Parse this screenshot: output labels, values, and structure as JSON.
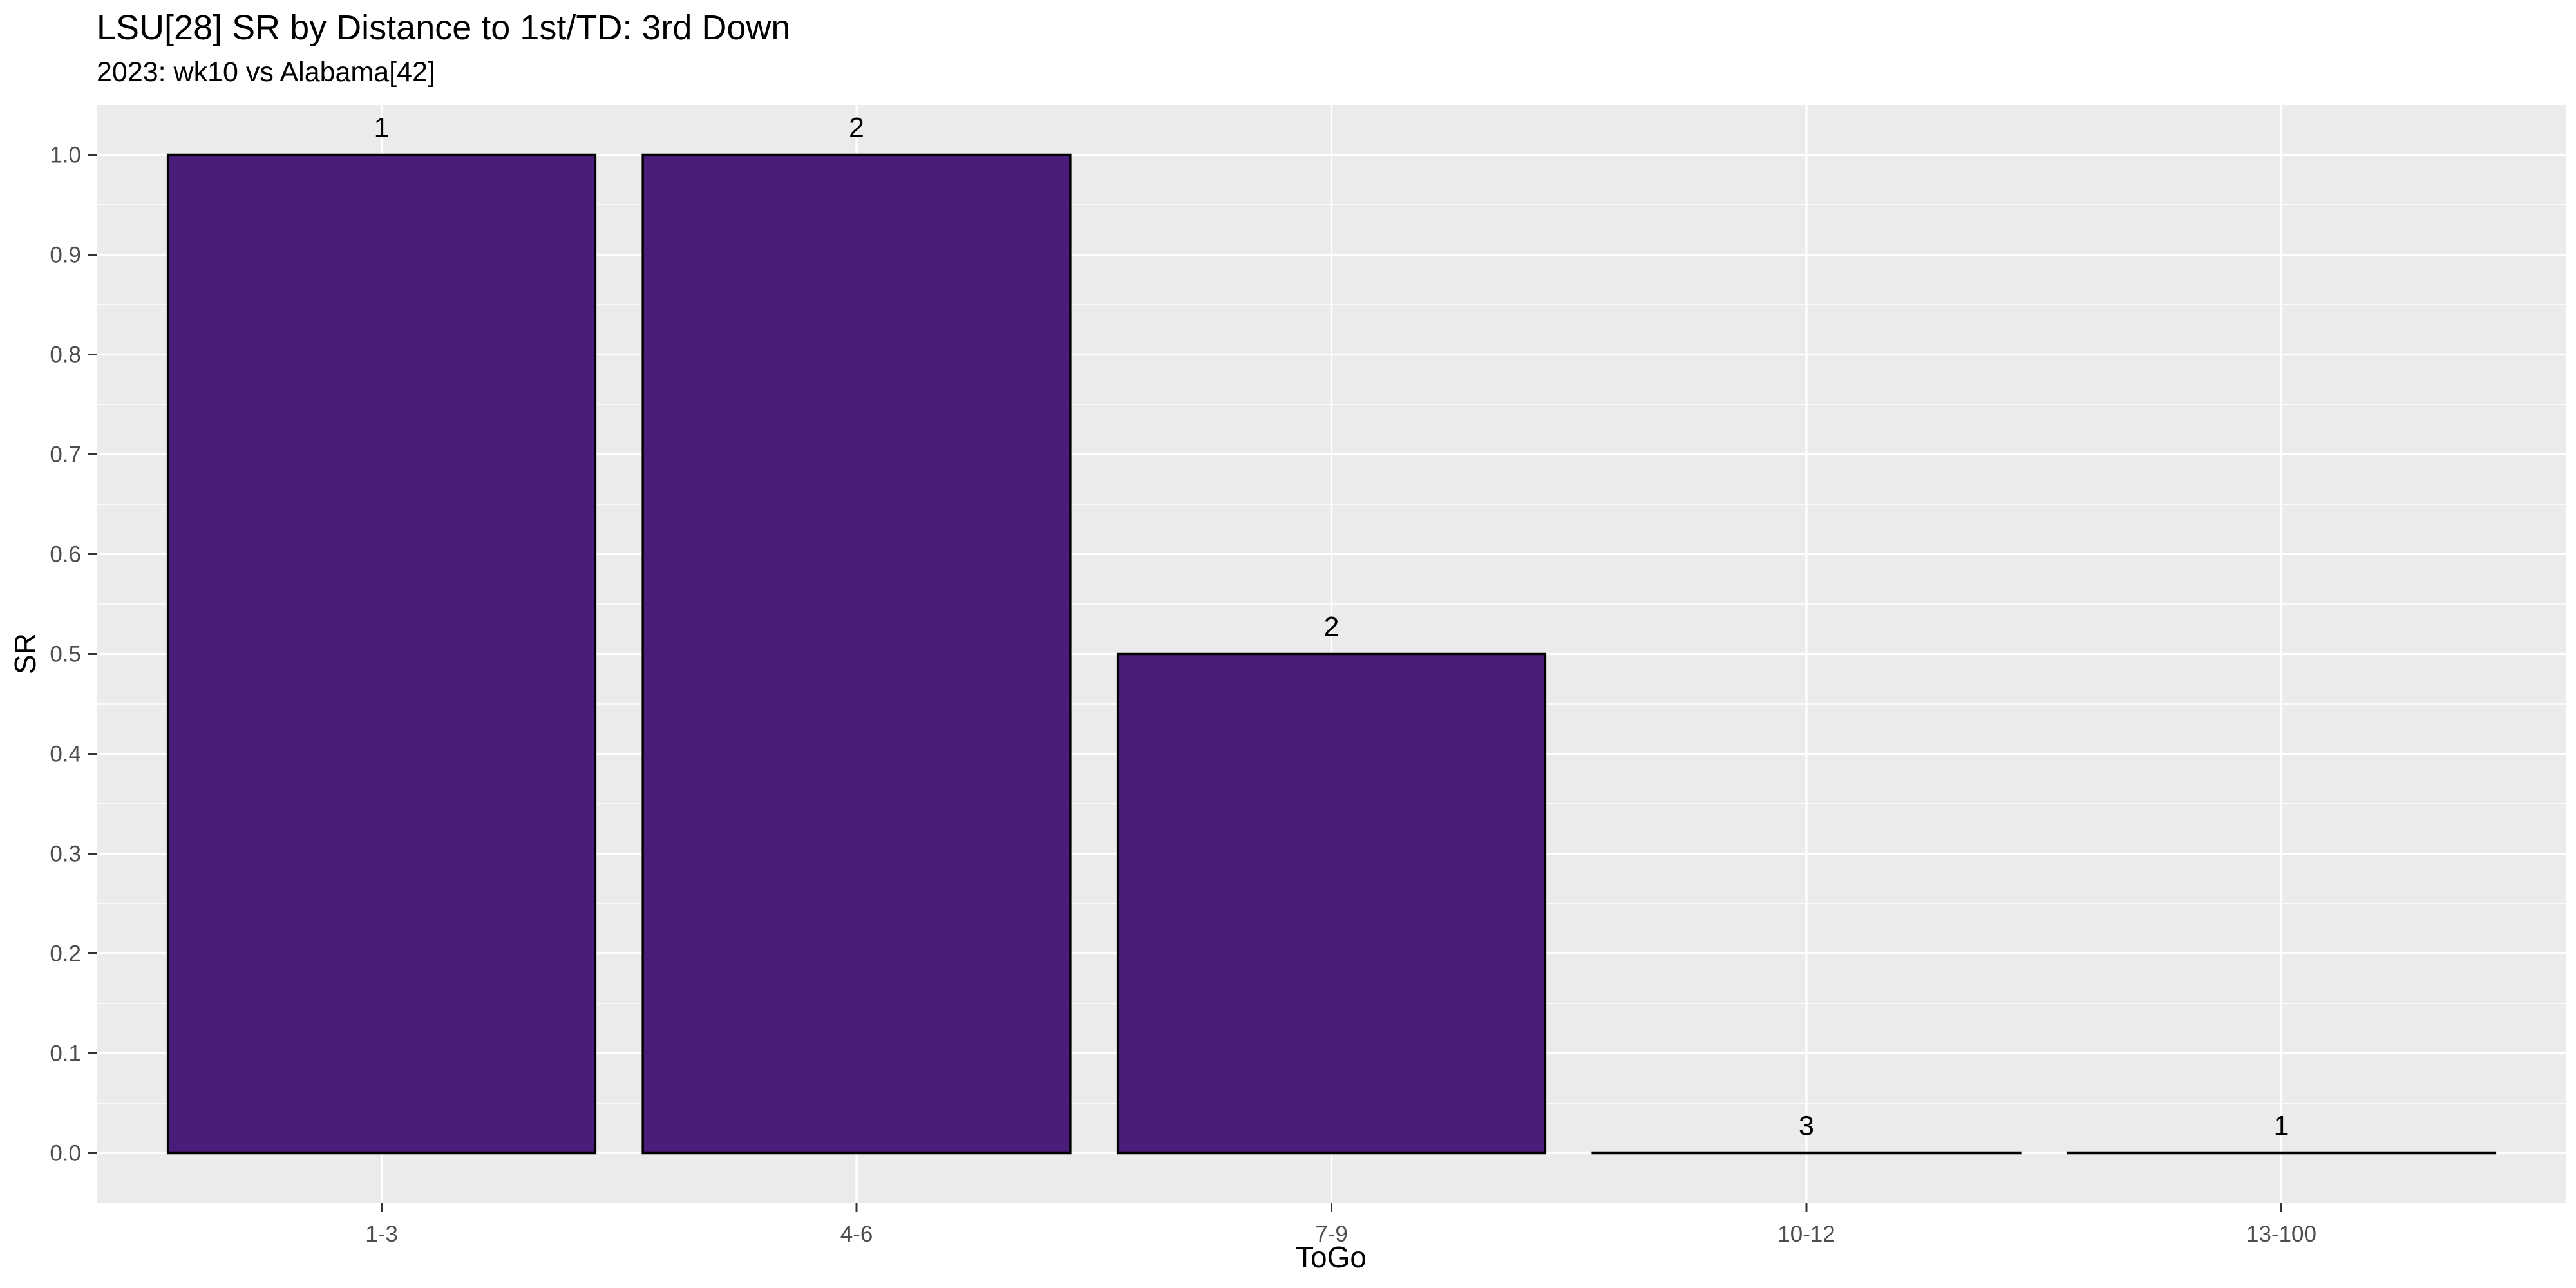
{
  "chart_data": {
    "type": "bar",
    "title": "LSU[28] SR by Distance to 1st/TD: 3rd Down",
    "subtitle": "2023: wk10 vs Alabama[42]",
    "xlabel": "ToGo",
    "ylabel": "SR",
    "categories": [
      "1-3",
      "4-6",
      "7-9",
      "10-12",
      "13-100"
    ],
    "values": [
      1.0,
      1.0,
      0.5,
      0.0,
      0.0
    ],
    "labels": [
      "1",
      "2",
      "2",
      "3",
      "1"
    ],
    "ylim": [
      -0.05,
      1.05
    ],
    "yticks": [
      0.0,
      0.1,
      0.2,
      0.3,
      0.4,
      0.5,
      0.6,
      0.7,
      0.8,
      0.9,
      1.0
    ],
    "ytick_labels": [
      "0.0",
      "0.1",
      "0.2",
      "0.3",
      "0.4",
      "0.5",
      "0.6",
      "0.7",
      "0.8",
      "0.9",
      "1.0"
    ],
    "grid": true,
    "legend": "none",
    "colors": {
      "bar_fill": "#4A1D7A",
      "bar_edge": "#000000",
      "panel_bg": "#EBEBEB",
      "grid": "#FFFFFF"
    }
  }
}
